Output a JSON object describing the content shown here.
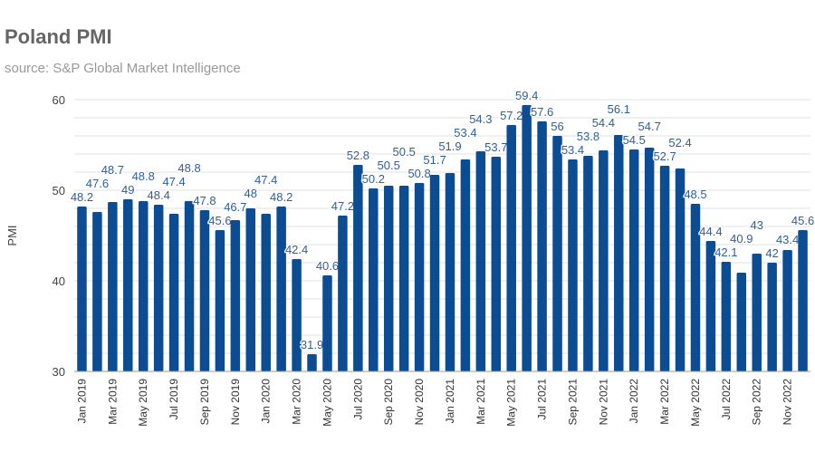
{
  "chart_data": {
    "type": "bar",
    "title": "Poland PMI",
    "subtitle": "source: S&P Global Market Intelligence",
    "xlabel": "",
    "ylabel": "PMI",
    "ylim": [
      30,
      60
    ],
    "yticks": [
      30,
      40,
      50,
      60
    ],
    "grid": true,
    "bar_color": "#0b4c92",
    "label_color": "#2f5f9a",
    "categories": [
      "Jan 2019",
      "Feb 2019",
      "Mar 2019",
      "Apr 2019",
      "May 2019",
      "Jun 2019",
      "Jul 2019",
      "Aug 2019",
      "Sep 2019",
      "Oct 2019",
      "Nov 2019",
      "Dec 2019",
      "Jan 2020",
      "Feb 2020",
      "Mar 2020",
      "Apr 2020",
      "May 2020",
      "Jun 2020",
      "Jul 2020",
      "Aug 2020",
      "Sep 2020",
      "Oct 2020",
      "Nov 2020",
      "Dec 2020",
      "Jan 2021",
      "Feb 2021",
      "Mar 2021",
      "Apr 2021",
      "May 2021",
      "Jun 2021",
      "Jul 2021",
      "Aug 2021",
      "Sep 2021",
      "Oct 2021",
      "Nov 2021",
      "Dec 2021",
      "Jan 2022",
      "Feb 2022",
      "Mar 2022",
      "Apr 2022",
      "May 2022",
      "Jun 2022",
      "Jul 2022",
      "Aug 2022",
      "Sep 2022",
      "Oct 2022",
      "Nov 2022",
      "Dec 2022"
    ],
    "values": [
      48.2,
      47.6,
      48.7,
      49,
      48.8,
      48.4,
      47.4,
      48.8,
      47.8,
      45.6,
      46.7,
      48,
      47.4,
      48.2,
      42.4,
      31.9,
      40.6,
      47.2,
      52.8,
      50.2,
      50.5,
      50.5,
      50.8,
      51.7,
      51.9,
      53.4,
      54.3,
      53.7,
      57.2,
      59.4,
      57.6,
      56,
      53.4,
      53.8,
      54.4,
      56.1,
      54.5,
      54.7,
      52.7,
      52.4,
      48.5,
      44.4,
      42.1,
      40.9,
      43,
      42,
      43.4,
      45.6
    ]
  }
}
